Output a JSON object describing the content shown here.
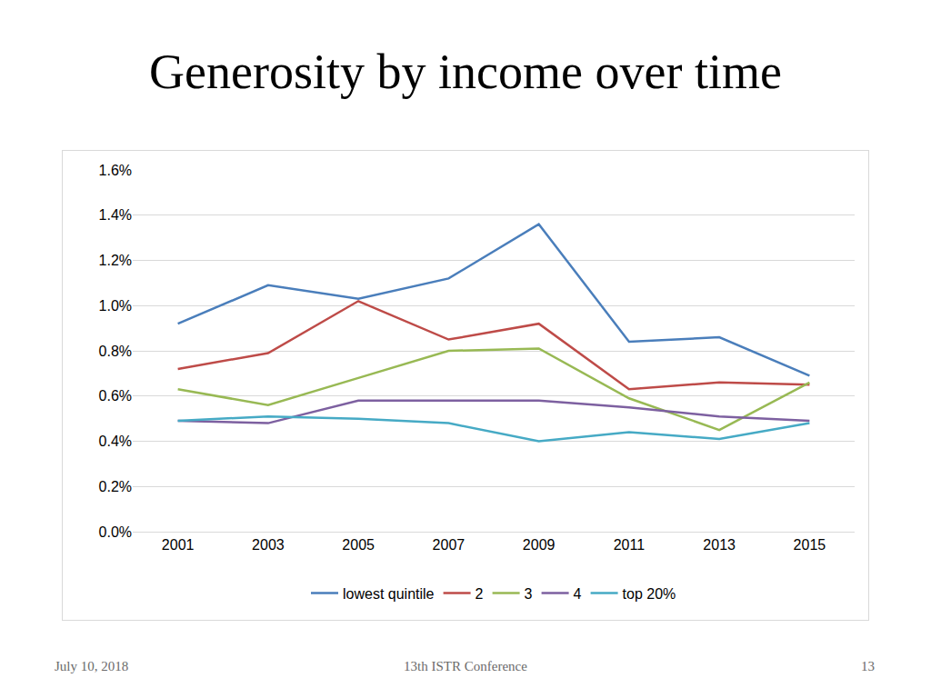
{
  "chart_data": {
    "type": "line",
    "title": "Generosity by income over time",
    "categories": [
      "2001",
      "2003",
      "2005",
      "2007",
      "2009",
      "2011",
      "2013",
      "2015"
    ],
    "series": [
      {
        "name": "lowest quintile",
        "color": "#4a7ebb",
        "values": [
          0.92,
          1.09,
          1.03,
          1.12,
          1.36,
          0.84,
          0.86,
          0.69
        ]
      },
      {
        "name": "2",
        "color": "#be4b48",
        "values": [
          0.72,
          0.79,
          1.02,
          0.85,
          0.92,
          0.63,
          0.66,
          0.65
        ]
      },
      {
        "name": "3",
        "color": "#98b954",
        "values": [
          0.63,
          0.56,
          0.68,
          0.8,
          0.81,
          0.59,
          0.45,
          0.66
        ]
      },
      {
        "name": "4",
        "color": "#7d60a0",
        "values": [
          0.49,
          0.48,
          0.58,
          0.58,
          0.58,
          0.55,
          0.51,
          0.49
        ]
      },
      {
        "name": "top 20%",
        "color": "#46aac5",
        "values": [
          0.49,
          0.51,
          0.5,
          0.48,
          0.4,
          0.44,
          0.41,
          0.48
        ]
      }
    ],
    "ylim": [
      0,
      1.6
    ],
    "yticks": [
      {
        "value": 0,
        "label": "0.0%"
      },
      {
        "value": 0.2,
        "label": "0.2%"
      },
      {
        "value": 0.4,
        "label": "0.4%"
      },
      {
        "value": 0.6,
        "label": "0.6%"
      },
      {
        "value": 0.8,
        "label": "0.8%"
      },
      {
        "value": 1.0,
        "label": "1.0%"
      },
      {
        "value": 1.2,
        "label": "1.2%"
      },
      {
        "value": 1.4,
        "label": "1.4%"
      },
      {
        "value": 1.6,
        "label": "1.6%"
      }
    ],
    "grid": true,
    "legend": "bottom"
  },
  "footer": {
    "date": "July 10, 2018",
    "event": "13th ISTR Conference",
    "page": "13"
  }
}
